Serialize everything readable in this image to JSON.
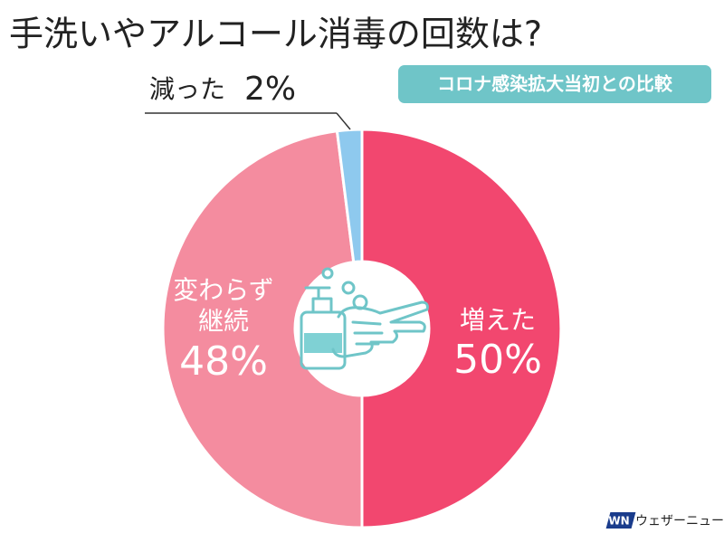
{
  "chart_data": {
    "type": "donut",
    "title": "手洗いやアルコール消毒の回数は?",
    "subtitle": "コロナ感染拡大当初との比較",
    "categories": [
      [
        "増えた"
      ],
      [
        "変わらず",
        "継続"
      ],
      [
        "減った"
      ]
    ],
    "values": [
      50,
      48,
      2
    ],
    "value_labels": [
      "50%",
      "48%",
      "2%"
    ],
    "colors": [
      "#f2476f",
      "#f48c9f",
      "#8ec9ee"
    ],
    "source_logo": "WN",
    "source": "ウェザーニュース"
  }
}
